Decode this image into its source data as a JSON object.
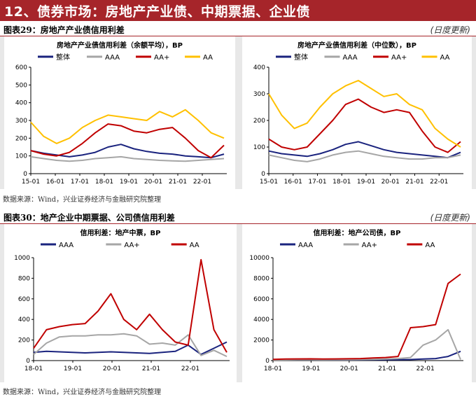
{
  "header": {
    "title": "12、债券市场：房地产产业债、中期票据、企业债"
  },
  "sections": [
    {
      "caption": "图表29：房地产产业债信用利差",
      "update": "(日度更新)",
      "source": "数据来源：Wind，兴业证券经济与金融研究院整理"
    },
    {
      "caption": "图表30：地产企业中期票据、公司债信用利差",
      "update": "(日度更新)",
      "source": "数据来源：Wind，兴业证券经济与金融研究院整理"
    }
  ],
  "chart_data": [
    {
      "type": "line",
      "title": "房地产产业债信用利差（余额平均），BP",
      "x_ticks": [
        "15-01",
        "16-01",
        "17-01",
        "18-01",
        "19-01",
        "20-01",
        "21-01",
        "22-01"
      ],
      "ylim": [
        0,
        600
      ],
      "y_ticks": [
        0,
        100,
        200,
        300,
        400,
        500,
        600
      ],
      "legend_position": "top",
      "series": [
        {
          "name": "整体",
          "color": "#1a237e",
          "values": [
            130,
            115,
            105,
            95,
            105,
            120,
            150,
            165,
            140,
            125,
            115,
            110,
            100,
            95,
            90,
            110
          ]
        },
        {
          "name": "AAA",
          "color": "#a6a6a6",
          "values": [
            95,
            85,
            75,
            70,
            75,
            85,
            90,
            95,
            85,
            80,
            75,
            72,
            70,
            75,
            80,
            85
          ]
        },
        {
          "name": "AA+",
          "color": "#c00000",
          "values": [
            130,
            110,
            100,
            120,
            170,
            230,
            280,
            270,
            240,
            230,
            250,
            260,
            200,
            130,
            90,
            160
          ]
        },
        {
          "name": "AA",
          "color": "#ffc000",
          "values": [
            290,
            210,
            170,
            200,
            260,
            300,
            330,
            320,
            310,
            300,
            350,
            320,
            360,
            300,
            230,
            200
          ]
        }
      ]
    },
    {
      "type": "line",
      "title": "房地产产业债信用利差（中位数），BP",
      "x_ticks": [
        "15-01",
        "16-01",
        "17-01",
        "18-01",
        "19-01",
        "20-01",
        "21-01",
        "22-01"
      ],
      "ylim": [
        0,
        400
      ],
      "y_ticks": [
        0,
        100,
        200,
        300,
        400
      ],
      "legend_position": "top",
      "series": [
        {
          "name": "整体",
          "color": "#1a237e",
          "values": [
            85,
            75,
            70,
            65,
            75,
            90,
            110,
            120,
            105,
            90,
            80,
            75,
            70,
            65,
            60,
            80
          ]
        },
        {
          "name": "AAA",
          "color": "#a6a6a6",
          "values": [
            70,
            60,
            50,
            45,
            55,
            70,
            80,
            85,
            75,
            65,
            60,
            55,
            55,
            60,
            60,
            70
          ]
        },
        {
          "name": "AA+",
          "color": "#c00000",
          "values": [
            130,
            100,
            90,
            100,
            150,
            200,
            260,
            280,
            250,
            230,
            240,
            230,
            160,
            100,
            80,
            120
          ]
        },
        {
          "name": "AA",
          "color": "#ffc000",
          "values": [
            300,
            220,
            170,
            190,
            250,
            300,
            330,
            350,
            320,
            290,
            300,
            260,
            240,
            170,
            130,
            100
          ]
        }
      ]
    },
    {
      "type": "line",
      "title": "信用利差：地产中票，BP",
      "x_ticks": [
        "18-01",
        "19-01",
        "20-01",
        "21-01",
        "22-01"
      ],
      "ylim": [
        0,
        1000
      ],
      "y_ticks": [
        0,
        200,
        400,
        600,
        800,
        1000
      ],
      "legend_position": "top",
      "series": [
        {
          "name": "AAA",
          "color": "#1a237e",
          "values": [
            80,
            90,
            85,
            80,
            75,
            80,
            85,
            80,
            75,
            70,
            80,
            90,
            150,
            60,
            120,
            180
          ]
        },
        {
          "name": "AA+",
          "color": "#a6a6a6",
          "values": [
            60,
            170,
            230,
            240,
            240,
            250,
            250,
            260,
            240,
            160,
            170,
            150,
            250,
            50,
            100,
            40
          ]
        },
        {
          "name": "AA",
          "color": "#c00000",
          "values": [
            120,
            300,
            330,
            350,
            360,
            480,
            650,
            400,
            300,
            450,
            300,
            180,
            150,
            980,
            300,
            80
          ]
        }
      ]
    },
    {
      "type": "line",
      "title": "信用利差：地产公司债，BP",
      "x_ticks": [
        "18-01",
        "19-01",
        "20-01",
        "21-01",
        "22-01"
      ],
      "ylim": [
        0,
        10000
      ],
      "y_ticks": [
        0,
        2000,
        4000,
        6000,
        8000,
        10000
      ],
      "legend_position": "top",
      "series": [
        {
          "name": "AAA",
          "color": "#1a237e",
          "values": [
            80,
            90,
            85,
            80,
            75,
            70,
            70,
            75,
            80,
            85,
            90,
            100,
            150,
            200,
            400,
            900
          ]
        },
        {
          "name": "AA+",
          "color": "#a6a6a6",
          "values": [
            60,
            70,
            80,
            80,
            75,
            80,
            90,
            100,
            120,
            150,
            200,
            300,
            1500,
            2000,
            3000,
            100
          ]
        },
        {
          "name": "AA",
          "color": "#c00000",
          "values": [
            120,
            150,
            160,
            170,
            150,
            160,
            180,
            200,
            250,
            300,
            400,
            3200,
            3300,
            3500,
            7500,
            8400
          ]
        }
      ]
    }
  ]
}
